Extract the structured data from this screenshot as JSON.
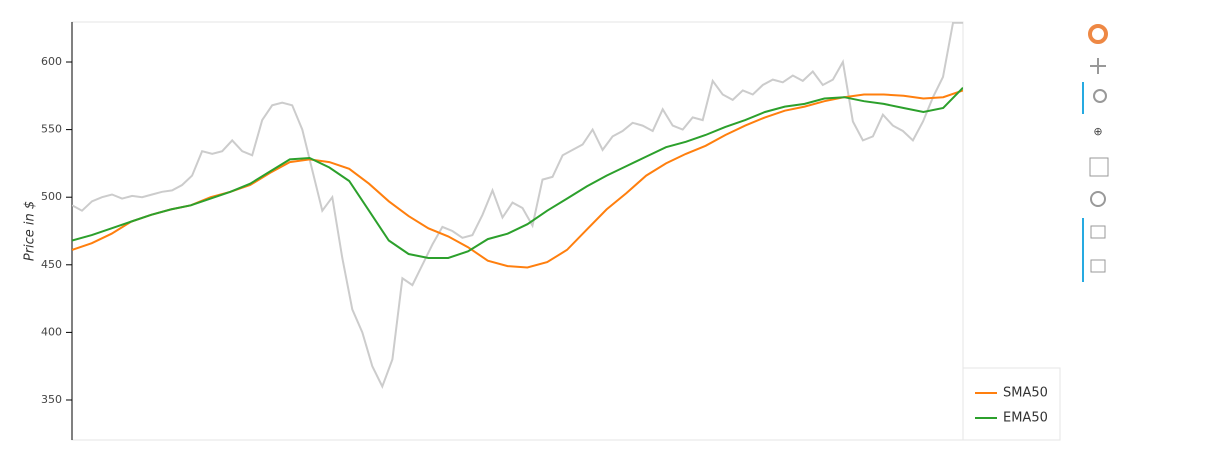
{
  "chart_data": {
    "type": "line",
    "y_label": "Price in $",
    "ylim": [
      320.4,
      629.6
    ],
    "yticks": [
      350,
      400,
      450,
      500,
      550,
      600
    ],
    "legend": "bottom-right",
    "series": [
      {
        "color": "#cccccc",
        "values": [
          494,
          490,
          497,
          500,
          502,
          499,
          501,
          500,
          502,
          504,
          505,
          509,
          516,
          534,
          532,
          534,
          542,
          534,
          531,
          557,
          568,
          570,
          568,
          550,
          520,
          490,
          500,
          455,
          417,
          400,
          375,
          360,
          380,
          440,
          435,
          450,
          465,
          478,
          475,
          470,
          472,
          487,
          505,
          485,
          496,
          492,
          479,
          513,
          515,
          531,
          535,
          539,
          550,
          535,
          545,
          549,
          555,
          553,
          549,
          565,
          553,
          550,
          559,
          557,
          586,
          576,
          572,
          579,
          576,
          583,
          587,
          585,
          590,
          586,
          593,
          583,
          587,
          600,
          556,
          542,
          545,
          561,
          553,
          549,
          542,
          556,
          574,
          589,
          629,
          629
        ]
      },
      {
        "name": "SMA50",
        "color": "#ff7f0e",
        "values": [
          461,
          466,
          473,
          482,
          487,
          491,
          494,
          500,
          504,
          509,
          518,
          526,
          528,
          526,
          521,
          510,
          497,
          486,
          477,
          471,
          463,
          453,
          449,
          448,
          452,
          461,
          476,
          491,
          503,
          516,
          525,
          532,
          538,
          546,
          553,
          559,
          564,
          567,
          571,
          574,
          576,
          576,
          575,
          573,
          574,
          579
        ]
      },
      {
        "name": "EMA50",
        "color": "#2ca02c",
        "values": [
          468,
          472,
          477,
          482,
          487,
          491,
          494,
          499,
          504,
          510,
          519,
          528,
          529,
          522,
          512,
          490,
          468,
          458,
          455,
          455,
          460,
          469,
          473,
          480,
          490,
          499,
          508,
          516,
          523,
          530,
          537,
          541,
          546,
          552,
          557,
          563,
          567,
          569,
          573,
          574,
          571,
          569,
          566,
          563,
          566,
          581
        ]
      }
    ]
  }
}
